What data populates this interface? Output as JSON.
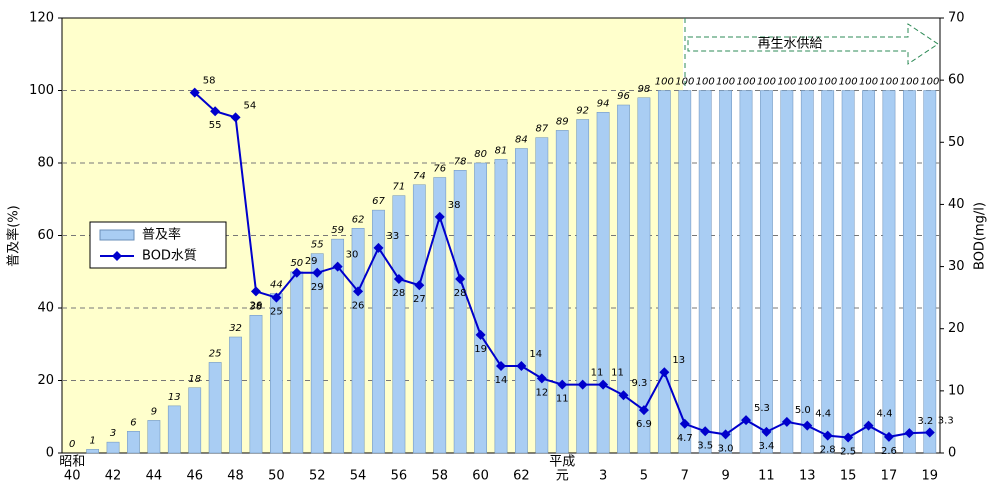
{
  "chart_data": {
    "type": "bar_line",
    "categories": [
      "40",
      null,
      "42",
      null,
      "44",
      null,
      "46",
      null,
      "48",
      null,
      "50",
      null,
      "52",
      null,
      "54",
      null,
      "56",
      null,
      "58",
      null,
      "60",
      null,
      "62",
      null,
      "元",
      null,
      "3",
      null,
      "5",
      null,
      "7",
      null,
      "9",
      null,
      "11",
      null,
      "13",
      null,
      "15",
      null,
      "17",
      null,
      "19"
    ],
    "era_labels": [
      {
        "text": "昭和",
        "index": 0
      },
      {
        "text": "平成",
        "index": 24
      }
    ],
    "series": [
      {
        "name": "普及率",
        "type": "bar",
        "color": "#a9cdf3",
        "values": [
          0,
          1,
          3,
          6,
          9,
          13,
          18,
          25,
          32,
          38,
          44,
          50,
          55,
          59,
          62,
          67,
          71,
          74,
          76,
          78,
          80,
          81,
          84,
          87,
          89,
          92,
          94,
          96,
          98,
          100,
          100,
          100,
          100,
          100,
          100,
          100,
          100,
          100,
          100,
          100,
          100,
          100,
          100
        ]
      },
      {
        "name": "BOD水質",
        "type": "line",
        "axis": "y2",
        "color": "#0000cc",
        "values": [
          null,
          null,
          null,
          null,
          null,
          null,
          58,
          55,
          54,
          26,
          25,
          29,
          29,
          30,
          26,
          33,
          28,
          27,
          38,
          28,
          19,
          14,
          14,
          12,
          11,
          11,
          11,
          9.3,
          6.9,
          13,
          4.7,
          3.5,
          3.0,
          5.3,
          3.4,
          5.0,
          4.4,
          2.8,
          2.5,
          4.4,
          2.6,
          3.2,
          3.3
        ],
        "value_labels": [
          null,
          null,
          null,
          null,
          null,
          null,
          "58",
          "55",
          "54",
          "26",
          "25",
          "29",
          "29",
          "30",
          "26",
          "33",
          "28",
          "27",
          "38",
          "28",
          "19",
          "14",
          "14",
          "12",
          "11",
          "11",
          "11",
          "9.3",
          "6.9",
          "13",
          "4.7",
          "3.5",
          "3.0",
          "5.3",
          "3.4",
          "5.0",
          "4.4",
          "2.8",
          "2.5",
          "4.4",
          "2.6",
          "3.2",
          "3.3"
        ]
      }
    ],
    "y_label": "普及率(%)",
    "y2_label": "BOD(mg/l)",
    "ylim": [
      0,
      120
    ],
    "yticks": [
      0,
      20,
      40,
      60,
      80,
      100,
      120
    ],
    "y2lim": [
      0,
      70
    ],
    "y2ticks": [
      0,
      10,
      20,
      30,
      40,
      50,
      60,
      70
    ],
    "grid": true,
    "annotation": "再生水供給"
  }
}
